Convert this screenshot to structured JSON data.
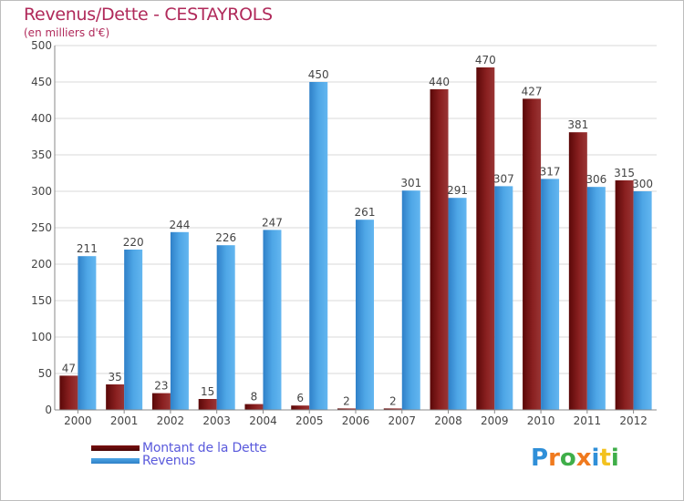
{
  "chart_data": {
    "type": "bar",
    "title": "Revenus/Dette - CESTAYROLS",
    "subtitle": "(en milliers d'€)",
    "categories": [
      "2000",
      "2001",
      "2002",
      "2003",
      "2004",
      "2005",
      "2006",
      "2007",
      "2008",
      "2009",
      "2010",
      "2011",
      "2012"
    ],
    "series": [
      {
        "name": "Montant de la Dette",
        "color": "#7a1010",
        "values": [
          47,
          35,
          23,
          15,
          8,
          6,
          2,
          2,
          440,
          470,
          427,
          381,
          315
        ]
      },
      {
        "name": "Revenus",
        "color": "#4a9fe0",
        "values": [
          211,
          220,
          244,
          226,
          247,
          450,
          261,
          301,
          291,
          307,
          317,
          306,
          300
        ]
      }
    ],
    "ylim": [
      0,
      500
    ],
    "yticks": [
      0,
      50,
      100,
      150,
      200,
      250,
      300,
      350,
      400,
      450,
      500
    ],
    "grid": true,
    "legend_position": "bottom-left"
  },
  "logo": {
    "letters": [
      {
        "ch": "P",
        "color": "#2f8fd8"
      },
      {
        "ch": "r",
        "color": "#f07a1e"
      },
      {
        "ch": "o",
        "color": "#3fae49"
      },
      {
        "ch": "x",
        "color": "#f07a1e"
      },
      {
        "ch": "i",
        "color": "#2f8fd8"
      },
      {
        "ch": "t",
        "color": "#f3c21f"
      },
      {
        "ch": "i",
        "color": "#3fae49"
      }
    ]
  }
}
